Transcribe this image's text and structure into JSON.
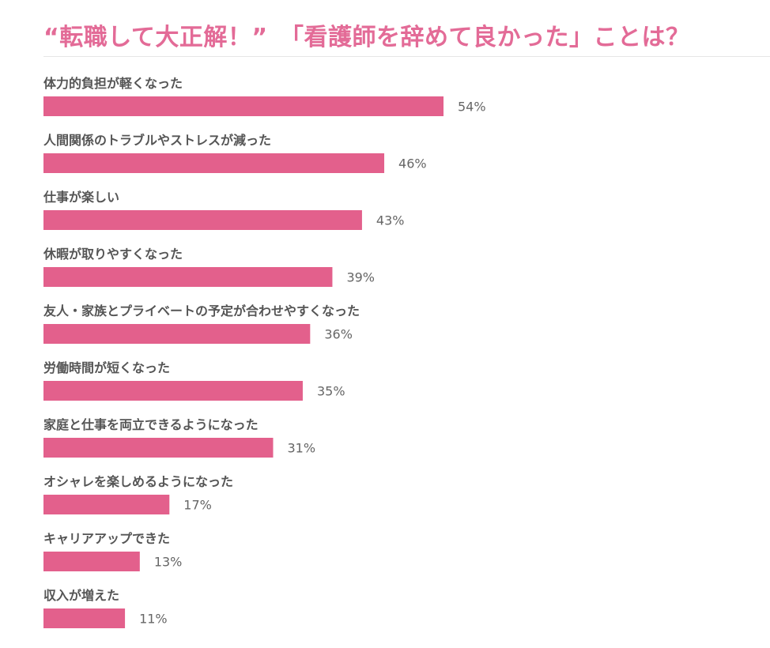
{
  "title": "“転職して大正解！”　「看護師を辞めて良かった」ことは？",
  "colors": {
    "bar": "#e3608c",
    "title": "#e36b97",
    "label": "#555555",
    "value": "#666666"
  },
  "chart_data": {
    "type": "bar",
    "orientation": "horizontal",
    "title": "“転職して大正解！”　「看護師を辞めて良かった」ことは？",
    "categories": [
      "体力的負担が軽くなった",
      "人間関係のトラブルやストレスが減った",
      "仕事が楽しい",
      "休暇が取りやすくなった",
      "友人・家族とプライベートの予定が合わせやすくなった",
      "労働時間が短くなった",
      "家庭と仕事を両立できるようになった",
      "オシャレを楽しめるようになった",
      "キャリアアップできた",
      "収入が増えた"
    ],
    "values": [
      54,
      46,
      43,
      39,
      36,
      35,
      31,
      17,
      13,
      11
    ],
    "value_labels": [
      "54%",
      "46%",
      "43%",
      "39%",
      "36%",
      "35%",
      "31%",
      "17%",
      "13%",
      "11%"
    ],
    "unit": "%",
    "xlim": [
      0,
      100
    ],
    "grid": false,
    "legend": "none"
  }
}
